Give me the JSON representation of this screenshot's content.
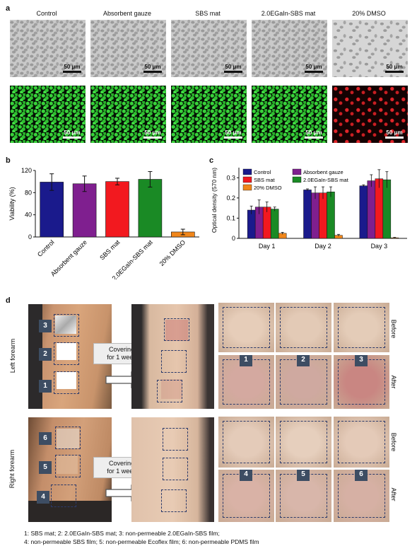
{
  "panel_a": {
    "letter": "a",
    "columns": [
      {
        "title": "Control",
        "fluo": "green"
      },
      {
        "title": "Absorbent gauze",
        "fluo": "green"
      },
      {
        "title": "SBS mat",
        "fluo": "green"
      },
      {
        "title": "2.0EGaIn-SBS mat",
        "fluo": "green"
      },
      {
        "title": "20% DMSO",
        "fluo": "red"
      }
    ],
    "scale_label": "50 μm"
  },
  "panel_b": {
    "letter": "b",
    "chart_data": {
      "type": "bar",
      "categories": [
        "Control",
        "Absorbent gauze",
        "SBS mat",
        "2.0EGaIn-SBS mat",
        "20% DMSO"
      ],
      "values": [
        99,
        96,
        100,
        104,
        9
      ],
      "errors": [
        15,
        14,
        6,
        14,
        5
      ],
      "colors": [
        "#1a1a8c",
        "#7f1f8f",
        "#f2191f",
        "#1a8a25",
        "#f0861a"
      ],
      "ylabel": "Viability (%)",
      "ylim": [
        0,
        120
      ],
      "yticks": [
        0,
        40,
        80,
        120
      ]
    }
  },
  "panel_c": {
    "letter": "c",
    "chart_data": {
      "type": "bar",
      "categories": [
        "Day 1",
        "Day 2",
        "Day 3"
      ],
      "series": [
        {
          "name": "Control",
          "color": "#1a1a8c",
          "values": [
            0.14,
            0.24,
            0.26
          ],
          "errors": [
            0.02,
            0.005,
            0.005
          ]
        },
        {
          "name": "Absorbent gauze",
          "color": "#7f1f8f",
          "values": [
            0.155,
            0.225,
            0.285
          ],
          "errors": [
            0.035,
            0.03,
            0.03
          ]
        },
        {
          "name": "SBS mat",
          "color": "#f2191f",
          "values": [
            0.155,
            0.225,
            0.295
          ],
          "errors": [
            0.025,
            0.03,
            0.045
          ]
        },
        {
          "name": "2.0EGaIn-SBS mat",
          "color": "#1a8a25",
          "values": [
            0.145,
            0.23,
            0.29
          ],
          "errors": [
            0.01,
            0.025,
            0.04
          ]
        },
        {
          "name": "20% DMSO",
          "color": "#f0861a",
          "values": [
            0.025,
            0.015,
            0.003
          ],
          "errors": [
            0.005,
            0.005,
            0.002
          ]
        }
      ],
      "ylabel": "Optical density (570 nm)",
      "ylim": [
        0,
        0.35
      ],
      "yticks": [
        0,
        0.1,
        0.2,
        0.3
      ],
      "legend": "top-left, two columns"
    }
  },
  "panel_d": {
    "letter": "d",
    "left_label": "Left forearm",
    "right_label": "Right forearm",
    "cover_label_line1": "Covering",
    "cover_label_line2": "for 1 week",
    "before_label": "Before",
    "after_label": "After",
    "top_numbers": [
      "3",
      "2",
      "1"
    ],
    "bottom_numbers": [
      "6",
      "5",
      "4"
    ],
    "tile_numbers_top": [
      "1",
      "2",
      "3"
    ],
    "tile_numbers_bottom": [
      "4",
      "5",
      "6"
    ],
    "caption_line1": "1: SBS mat; 2: 2.0EGaIn-SBS mat; 3: non-permeable 2.0EGaIn-SBS film;",
    "caption_line2": "4: non-permeable SBS film; 5: non-permeable Ecoflex film; 6: non-permeable PDMS film"
  }
}
